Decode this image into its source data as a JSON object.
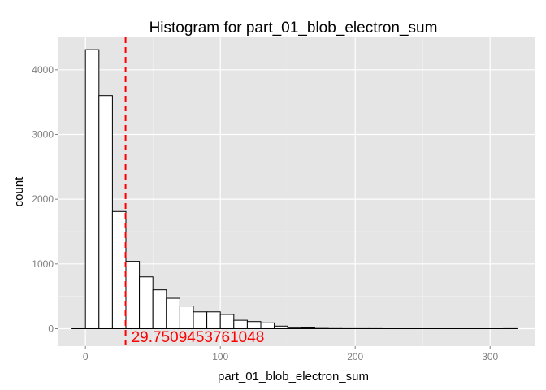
{
  "chart_data": {
    "type": "bar",
    "title": "Histogram for part_01_blob_electron_sum",
    "xlabel": "part_01_blob_electron_sum",
    "ylabel": "count",
    "xlim": [
      -20,
      333
    ],
    "ylim": [
      -270,
      4500
    ],
    "x_ticks": [
      0,
      100,
      200,
      300
    ],
    "y_ticks": [
      0,
      1000,
      2000,
      3000,
      4000
    ],
    "grid": true,
    "bin_width": 10,
    "bins": [
      {
        "start": -10,
        "end": 0,
        "count": 0
      },
      {
        "start": 0,
        "end": 10,
        "count": 4310
      },
      {
        "start": 10,
        "end": 20,
        "count": 3600
      },
      {
        "start": 20,
        "end": 30,
        "count": 1810
      },
      {
        "start": 30,
        "end": 40,
        "count": 1040
      },
      {
        "start": 40,
        "end": 50,
        "count": 800
      },
      {
        "start": 50,
        "end": 60,
        "count": 600
      },
      {
        "start": 60,
        "end": 70,
        "count": 470
      },
      {
        "start": 70,
        "end": 80,
        "count": 350
      },
      {
        "start": 80,
        "end": 90,
        "count": 260
      },
      {
        "start": 90,
        "end": 100,
        "count": 260
      },
      {
        "start": 100,
        "end": 110,
        "count": 220
      },
      {
        "start": 110,
        "end": 120,
        "count": 130
      },
      {
        "start": 120,
        "end": 130,
        "count": 110
      },
      {
        "start": 130,
        "end": 140,
        "count": 90
      },
      {
        "start": 140,
        "end": 150,
        "count": 40
      },
      {
        "start": 150,
        "end": 160,
        "count": 15
      },
      {
        "start": 160,
        "end": 170,
        "count": 12
      },
      {
        "start": 170,
        "end": 180,
        "count": 4
      },
      {
        "start": 180,
        "end": 190,
        "count": 2
      },
      {
        "start": 190,
        "end": 200,
        "count": 1
      },
      {
        "start": 200,
        "end": 210,
        "count": 1
      },
      {
        "start": 210,
        "end": 220,
        "count": 1
      },
      {
        "start": 220,
        "end": 230,
        "count": 0
      },
      {
        "start": 230,
        "end": 240,
        "count": 0
      },
      {
        "start": 240,
        "end": 250,
        "count": 0
      },
      {
        "start": 250,
        "end": 260,
        "count": 0
      },
      {
        "start": 260,
        "end": 270,
        "count": 0
      },
      {
        "start": 270,
        "end": 280,
        "count": 0
      },
      {
        "start": 280,
        "end": 290,
        "count": 0
      },
      {
        "start": 290,
        "end": 300,
        "count": 0
      },
      {
        "start": 300,
        "end": 310,
        "count": 0
      },
      {
        "start": 310,
        "end": 320,
        "count": 1
      }
    ],
    "vline": {
      "x": 29.7509453761048,
      "label": "29.7509453761048",
      "color": "#ff0000",
      "style": "dashed"
    },
    "colors": {
      "panel": "#e5e5e5",
      "grid": "#ffffff",
      "bar_fill": "#ffffff",
      "bar_stroke": "#000000"
    }
  }
}
